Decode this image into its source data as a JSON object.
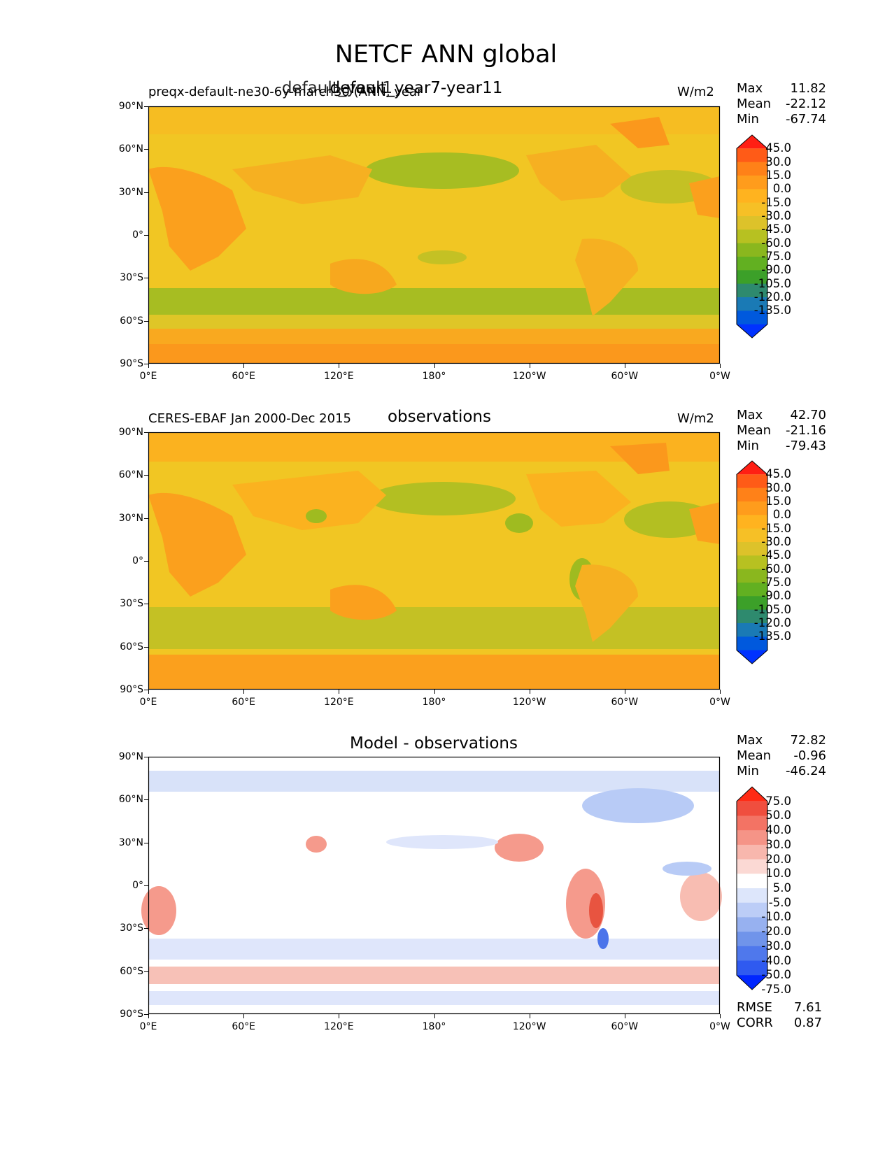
{
  "figure": {
    "title": "NETCF ANN global"
  },
  "colors": {
    "abs_scale": [
      "#0032ff",
      "#0059dd",
      "#1a7ab5",
      "#2e8a6e",
      "#3ca029",
      "#62b021",
      "#8ab71e",
      "#b7c121",
      "#ddc22a",
      "#f6c026",
      "#ffb31f",
      "#ff9c1c",
      "#ff8118",
      "#ff5b17",
      "#ff1f14"
    ],
    "diff_scale": [
      "#0026ff",
      "#2f5af0",
      "#4f78ec",
      "#7094ea",
      "#97b1f0",
      "#bccdf7",
      "#dde6fb",
      "#ffffff",
      "#fbd9d4",
      "#f8b7ad",
      "#f59487",
      "#f37364",
      "#f04e3e",
      "#ff2a14"
    ]
  },
  "panels": [
    {
      "title": "default_year7-year11",
      "title_overlap": "default_year1",
      "left_label": "preqx-default-ne30-6y-march30 (ANN, year",
      "right_label": "W/m2",
      "stats": [
        {
          "key": "Max",
          "value": "11.82"
        },
        {
          "key": "Mean",
          "value": "-22.12"
        },
        {
          "key": "Min",
          "value": "-67.74"
        }
      ],
      "colorbar_labels": [
        "45.0",
        "30.0",
        "15.0",
        "0.0",
        "-15.0",
        "-30.0",
        "-45.0",
        "-60.0",
        "-75.0",
        "-90.0",
        "-105.0",
        "-120.0",
        "-135.0"
      ]
    },
    {
      "title": "observations",
      "left_label": "CERES-EBAF Jan 2000-Dec 2015",
      "right_label": "W/m2",
      "stats": [
        {
          "key": "Max",
          "value": "42.70"
        },
        {
          "key": "Mean",
          "value": "-21.16"
        },
        {
          "key": "Min",
          "value": "-79.43"
        }
      ],
      "colorbar_labels": [
        "45.0",
        "30.0",
        "15.0",
        "0.0",
        "-15.0",
        "-30.0",
        "-45.0",
        "-60.0",
        "-75.0",
        "-90.0",
        "-105.0",
        "-120.0",
        "-135.0"
      ]
    },
    {
      "title": "Model - observations",
      "stats": [
        {
          "key": "Max",
          "value": "72.82"
        },
        {
          "key": "Mean",
          "value": "-0.96"
        },
        {
          "key": "Min",
          "value": "-46.24"
        }
      ],
      "colorbar_labels": [
        "75.0",
        "50.0",
        "40.0",
        "30.0",
        "20.0",
        "10.0",
        "5.0",
        "-5.0",
        "-10.0",
        "-20.0",
        "-30.0",
        "-40.0",
        "-50.0",
        "-75.0"
      ],
      "bottom_stats": [
        {
          "key": "RMSE",
          "value": "7.61"
        },
        {
          "key": "CORR",
          "value": "0.87"
        }
      ]
    }
  ],
  "axes": {
    "lat_ticks": [
      "90°N",
      "60°N",
      "30°N",
      "0°",
      "30°S",
      "60°S",
      "90°S"
    ],
    "lon_ticks": [
      "0°E",
      "60°E",
      "120°E",
      "180°",
      "120°W",
      "60°W",
      "0°W"
    ]
  }
}
